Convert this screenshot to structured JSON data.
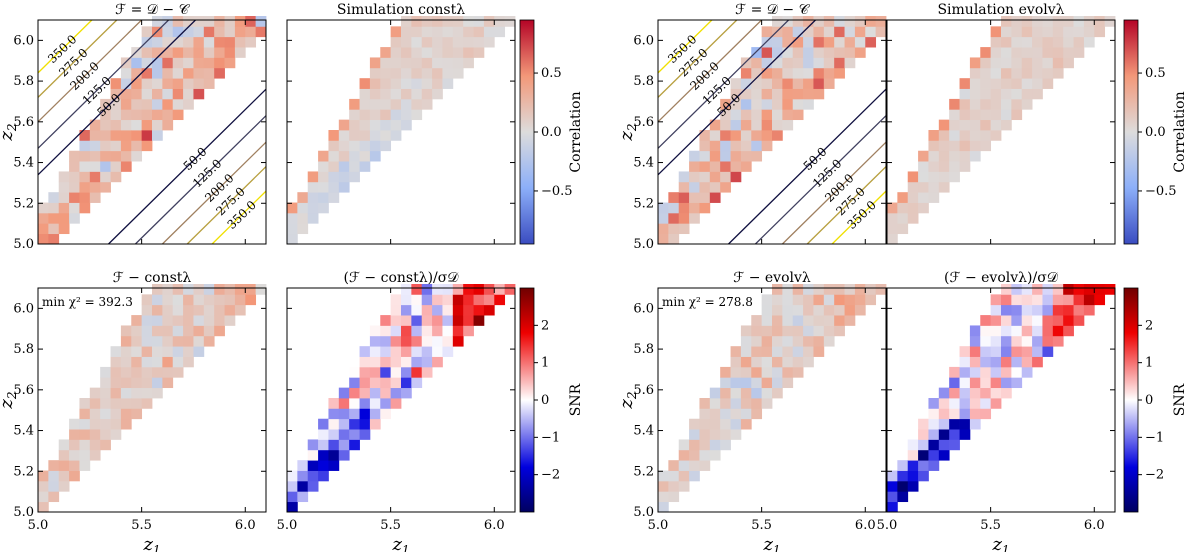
{
  "chart_data": {
    "type": "heatmap",
    "z_range": [
      5.0,
      6.1
    ],
    "x_ticks": [
      "5.0",
      "5.5",
      "6.0"
    ],
    "y_ticks": [
      "5.0",
      "5.2",
      "5.4",
      "5.6",
      "5.8",
      "6.0"
    ],
    "xlabel": "z1",
    "ylabel": "z2",
    "correlation_colorbar": {
      "label": "Correlation",
      "range": [
        -0.95,
        0.95
      ],
      "ticks": [
        "0.5",
        "0.0",
        "−0.5"
      ]
    },
    "snr_colorbar": {
      "label": "SNR",
      "range": [
        -3,
        3
      ],
      "ticks": [
        "2",
        "1",
        "0",
        "−1",
        "−2"
      ]
    },
    "contour_levels": [
      "350.0",
      "275.0",
      "200.0",
      "125.0",
      "50.0",
      "50.0",
      "125.0",
      "200.0",
      "275.0",
      "350.0"
    ],
    "panels": [
      {
        "id": "F-left",
        "title": "ℱ = 𝒟 − 𝒞",
        "kind": "correlation",
        "contours": true,
        "grid_start": 0
      },
      {
        "id": "sim-const",
        "title": "Simulation constλ",
        "kind": "correlation",
        "grid_start": 1
      },
      {
        "id": "F-right",
        "title": "ℱ = 𝒟 − 𝒞",
        "kind": "correlation",
        "contours": true,
        "grid_start": 0
      },
      {
        "id": "sim-evol",
        "title": "Simulation evolvλ",
        "kind": "correlation",
        "grid_start": 1
      },
      {
        "id": "F-minus-const",
        "title": "ℱ − constλ",
        "kind": "correlation",
        "annotation": "min χ² = 392.3",
        "grid_start": 1
      },
      {
        "id": "snr-const",
        "title": "(ℱ − constλ)/σ𝒟",
        "kind": "snr",
        "grid_start": 1
      },
      {
        "id": "F-minus-evol",
        "title": "ℱ − evolvλ",
        "kind": "correlation",
        "annotation": "min χ² = 278.8",
        "grid_start": 1
      },
      {
        "id": "snr-evol",
        "title": "(ℱ − evolvλ)/σ𝒟",
        "kind": "snr",
        "grid_start": 1
      }
    ]
  }
}
